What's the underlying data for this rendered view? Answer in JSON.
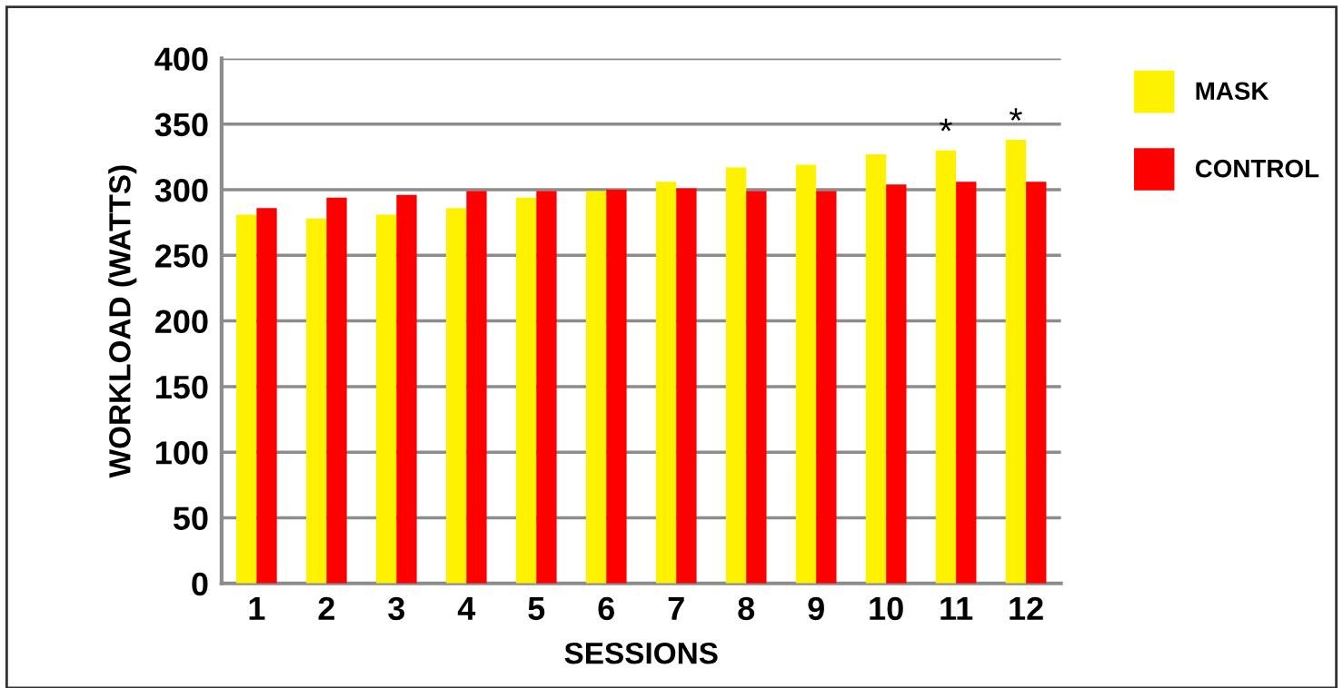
{
  "chart_data": {
    "type": "bar",
    "xlabel": "SESSIONS",
    "ylabel": "WORKLOAD (WATTS)",
    "categories": [
      "1",
      "2",
      "3",
      "4",
      "5",
      "6",
      "7",
      "8",
      "9",
      "10",
      "11",
      "12"
    ],
    "series": [
      {
        "name": "MASK",
        "color": "#fff200",
        "values": [
          281,
          278,
          281,
          286,
          294,
          299,
          306,
          317,
          319,
          327,
          330,
          338
        ]
      },
      {
        "name": "CONTROL",
        "color": "#ff0000",
        "values": [
          286,
          294,
          296,
          299,
          299,
          300,
          301,
          299,
          299,
          304,
          306,
          306
        ]
      }
    ],
    "ylim": [
      0,
      400
    ],
    "yticks": [
      0,
      50,
      100,
      150,
      200,
      250,
      300,
      350,
      400
    ],
    "grid": "y",
    "legend": "top right",
    "annotations": [
      {
        "text": "*",
        "x": "11",
        "y": 330
      },
      {
        "text": "*",
        "x": "12",
        "y": 338
      }
    ]
  }
}
